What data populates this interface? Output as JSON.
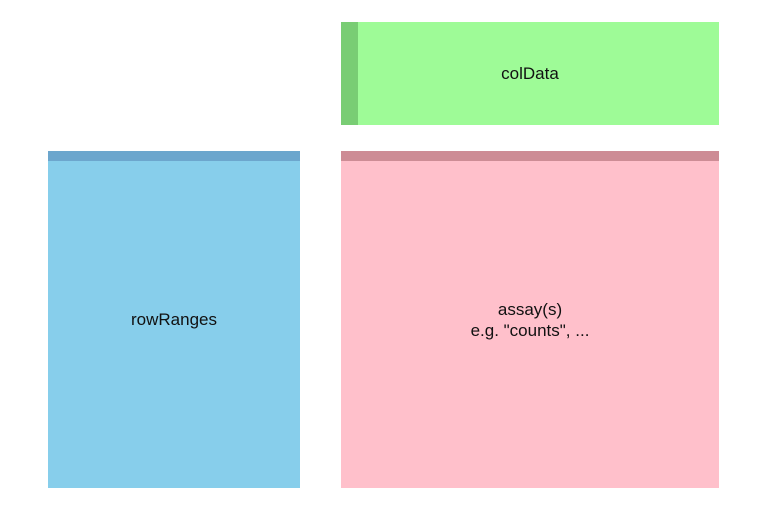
{
  "blocks": {
    "coldata": {
      "label": "colData",
      "fill_color": "#9efb97",
      "stripe_color": "#79cd74"
    },
    "rowranges": {
      "label": "rowRanges",
      "fill_color": "#87ceeb",
      "stripe_color": "#6ca6cd"
    },
    "assay": {
      "label_line1": "assay(s)",
      "label_line2": "e.g. \"counts\", ...",
      "fill_color": "#ffc0cb",
      "stripe_color": "#cd8c95"
    }
  }
}
